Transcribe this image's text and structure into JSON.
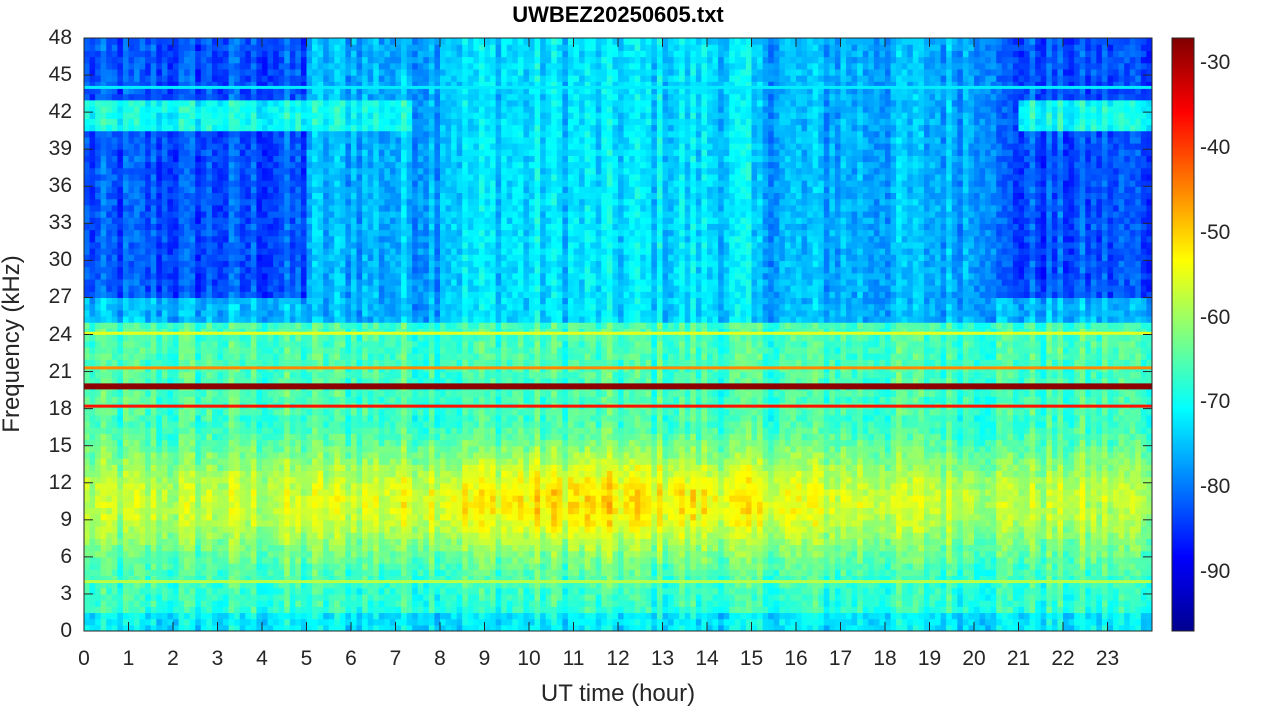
{
  "chart_data": {
    "type": "heatmap",
    "title": "UWBEZ20250605.txt",
    "xlabel": "UT time (hour)",
    "ylabel": "Frequency (kHz)",
    "xlim": [
      0,
      24
    ],
    "ylim": [
      0,
      48
    ],
    "x_ticks": [
      "0",
      "1",
      "2",
      "3",
      "4",
      "5",
      "6",
      "7",
      "8",
      "9",
      "10",
      "11",
      "12",
      "13",
      "14",
      "15",
      "16",
      "17",
      "18",
      "19",
      "20",
      "21",
      "22",
      "23"
    ],
    "y_ticks": [
      "0",
      "3",
      "6",
      "9",
      "12",
      "15",
      "18",
      "21",
      "24",
      "27",
      "30",
      "33",
      "36",
      "39",
      "42",
      "45",
      "48"
    ],
    "colorbar": {
      "colormap": "jet",
      "range": [
        -97,
        -27
      ],
      "ticks": [
        "-30",
        "-40",
        "-50",
        "-60",
        "-70",
        "-80",
        "-90"
      ]
    },
    "bands": [
      {
        "freq_khz": 19.8,
        "level_db": -28,
        "desc": "strong transmitter line"
      },
      {
        "freq_khz": 18.2,
        "level_db": -37
      },
      {
        "freq_khz": 21.3,
        "level_db": -45
      },
      {
        "freq_khz": 24.1,
        "level_db": -55
      },
      {
        "freq_khz": 4.0,
        "level_db": -58
      },
      {
        "freq_khz": 44.0,
        "level_db": -72
      }
    ],
    "regions": [
      {
        "freq_range_khz": [
          0,
          17.5
        ],
        "typical_db": -60,
        "desc": "broadband yellow-green noise, peaks near 10 kHz during daytime"
      },
      {
        "freq_range_khz": [
          25,
          48
        ],
        "typical_db": -78,
        "desc": "low-level blue background"
      }
    ]
  }
}
